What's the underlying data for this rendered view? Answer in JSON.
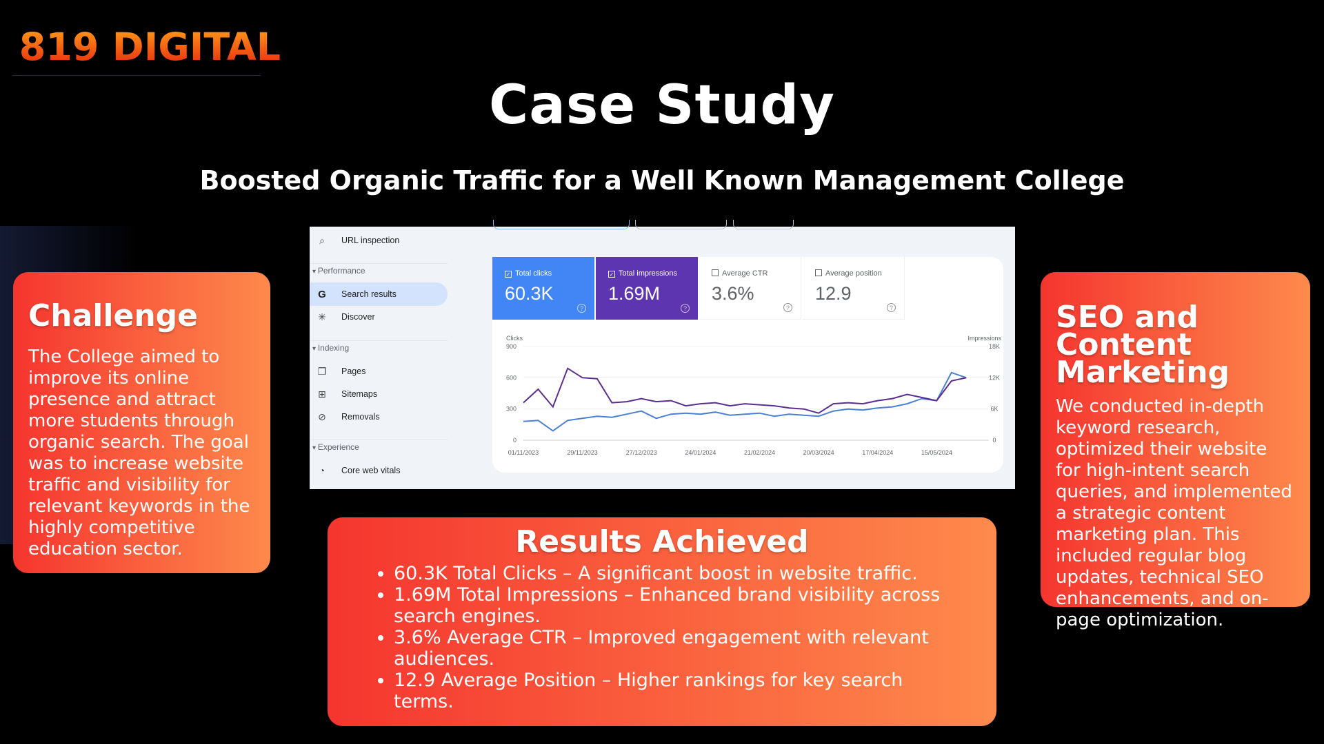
{
  "logo": {
    "text": "819 DIGITAL"
  },
  "header": {
    "title": "Case Study",
    "subtitle": "Boosted Organic Traffic for a Well Known Management College"
  },
  "challenge": {
    "title": "Challenge",
    "body": "The College aimed to improve its online presence and attract more students through organic search. The goal was to increase website traffic and visibility for relevant keywords in the highly competitive education sector."
  },
  "seo": {
    "title": "SEO and Content Marketing",
    "body": "We conducted in-depth keyword research, optimized their website for high-intent search queries, and implemented a strategic content marketing plan. This included regular blog updates, technical SEO enhancements, and on-page optimization."
  },
  "results": {
    "title": "Results Achieved",
    "items": [
      "60.3K Total Clicks – A significant boost in website traffic.",
      "1.69M Total Impressions – Enhanced brand visibility across search engines.",
      "3.6% Average CTR – Improved engagement with relevant audiences.",
      "12.9 Average Position – Higher rankings for key search terms."
    ]
  },
  "gsc": {
    "nav": [
      {
        "type": "item",
        "label": "URL inspection",
        "icon": "search-icon"
      },
      {
        "type": "section",
        "label": "Performance"
      },
      {
        "type": "item",
        "label": "Search results",
        "icon": "google-icon",
        "active": true
      },
      {
        "type": "item",
        "label": "Discover",
        "icon": "asterisk-icon"
      },
      {
        "type": "section",
        "label": "Indexing"
      },
      {
        "type": "item",
        "label": "Pages",
        "icon": "pages-icon"
      },
      {
        "type": "item",
        "label": "Sitemaps",
        "icon": "sitemap-icon"
      },
      {
        "type": "item",
        "label": "Removals",
        "icon": "eye-off-icon"
      },
      {
        "type": "section",
        "label": "Experience"
      },
      {
        "type": "item",
        "label": "Core web vitals",
        "icon": "gauge-icon"
      }
    ],
    "metrics": [
      {
        "label": "Total clicks",
        "value": "60.3K",
        "checked": true,
        "color": "#4285f4"
      },
      {
        "label": "Total impressions",
        "value": "1.69M",
        "checked": true,
        "color": "#5e35b1"
      },
      {
        "label": "Average CTR",
        "value": "3.6%",
        "checked": false,
        "color": "#ffffff"
      },
      {
        "label": "Average position",
        "value": "12.9",
        "checked": false,
        "color": "#ffffff"
      }
    ]
  },
  "chart_data": {
    "type": "line",
    "ylabel": "Clicks",
    "y2label": "Impressions",
    "ylim": [
      0,
      900
    ],
    "y2lim": [
      0,
      18000
    ],
    "yticks": [
      "0",
      "300",
      "600",
      "900"
    ],
    "y2ticks": [
      "0",
      "6K",
      "12K",
      "18K"
    ],
    "xticks": [
      "01/11/2023",
      "29/11/2023",
      "27/12/2023",
      "24/01/2024",
      "21/02/2024",
      "20/03/2024",
      "17/04/2024",
      "15/05/2024"
    ],
    "x": [
      "01/11/2023",
      "08/11/2023",
      "15/11/2023",
      "22/11/2023",
      "29/11/2023",
      "06/12/2023",
      "13/12/2023",
      "20/12/2023",
      "27/12/2023",
      "03/01/2024",
      "10/01/2024",
      "17/01/2024",
      "24/01/2024",
      "31/01/2024",
      "07/02/2024",
      "14/02/2024",
      "21/02/2024",
      "28/02/2024",
      "06/03/2024",
      "13/03/2024",
      "20/03/2024",
      "27/03/2024",
      "03/04/2024",
      "10/04/2024",
      "17/04/2024",
      "24/04/2024",
      "01/05/2024",
      "08/05/2024",
      "15/05/2024",
      "22/05/2024",
      "29/05/2024"
    ],
    "grid": true,
    "series": [
      {
        "name": "Clicks",
        "axis": "left",
        "color": "#4a7fd4",
        "values": [
          180,
          190,
          90,
          190,
          210,
          230,
          220,
          250,
          280,
          210,
          250,
          260,
          250,
          270,
          240,
          250,
          260,
          230,
          250,
          240,
          230,
          280,
          300,
          290,
          310,
          320,
          350,
          400,
          380,
          650,
          600
        ]
      },
      {
        "name": "Impressions",
        "axis": "right",
        "color": "#5b2d8e",
        "values": [
          7200,
          9800,
          6400,
          13800,
          12000,
          11800,
          7200,
          7400,
          8000,
          7400,
          7600,
          6600,
          7000,
          7200,
          6600,
          7000,
          6800,
          6600,
          6200,
          6000,
          5200,
          7000,
          7200,
          7000,
          7600,
          8000,
          8800,
          8200,
          7600,
          11400,
          12000
        ]
      }
    ]
  }
}
